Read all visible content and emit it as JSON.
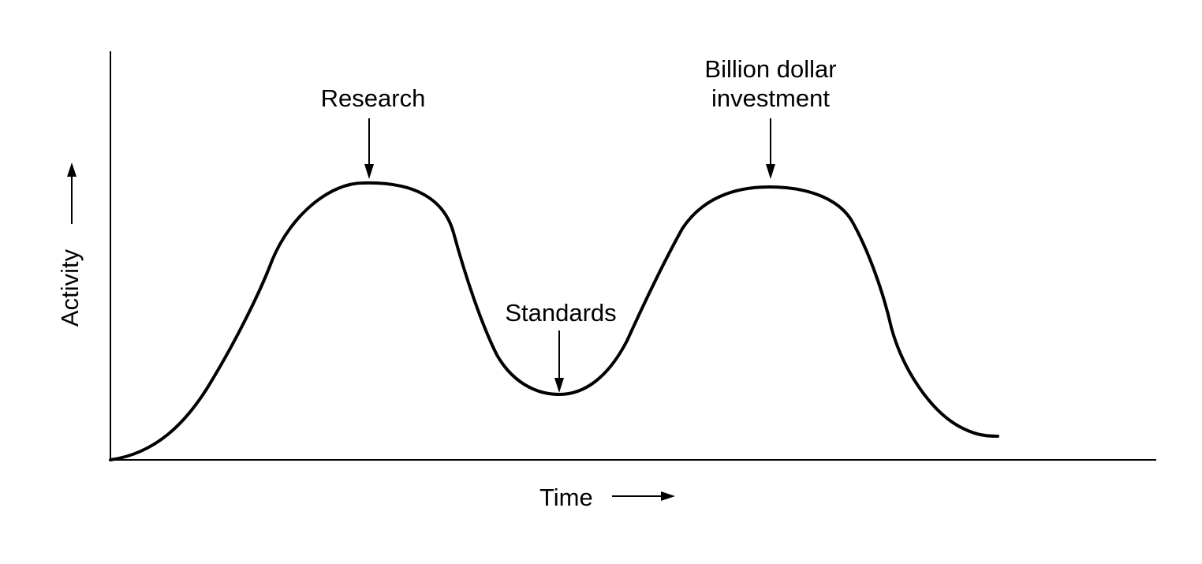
{
  "axes": {
    "y_label": "Activity",
    "x_label": "Time"
  },
  "annotations": {
    "research": "Research",
    "standards": "Standards",
    "investment_line1": "Billion dollar",
    "investment_line2": "investment"
  },
  "colors": {
    "ink": "#000000",
    "background": "#ffffff"
  }
}
